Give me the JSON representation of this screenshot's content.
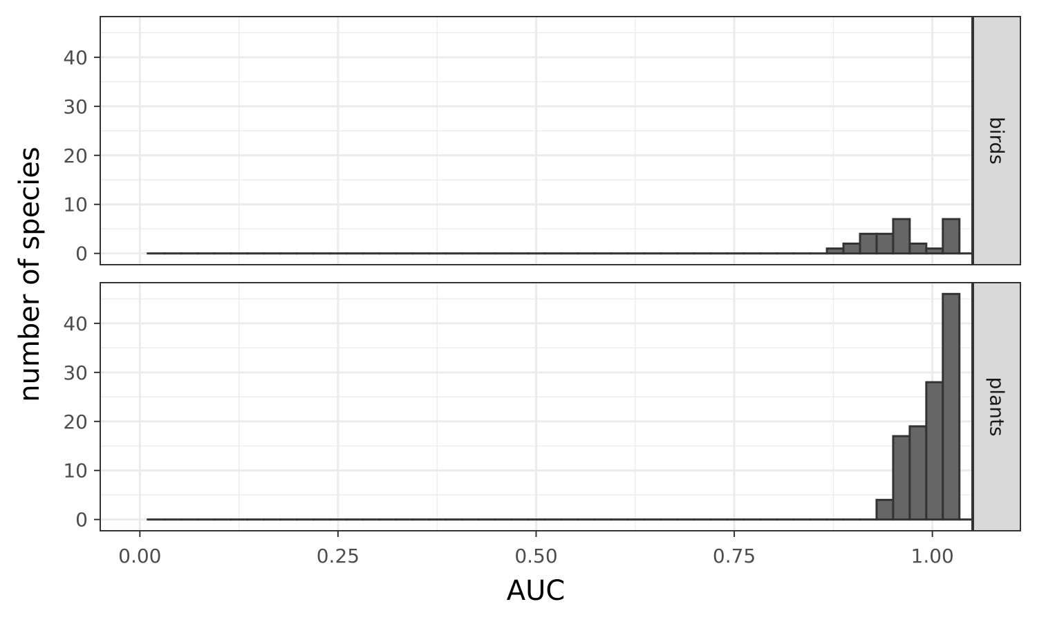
{
  "chart_data": {
    "type": "bar",
    "subtype": "faceted histogram",
    "xlabel": "AUC",
    "ylabel": "number of species",
    "xlim": [
      -0.05,
      1.05
    ],
    "ylim": [
      -2.3,
      48.3
    ],
    "x_ticks": [
      0.0,
      0.25,
      0.5,
      0.75,
      1.0
    ],
    "x_tick_labels": [
      "0.00",
      "0.25",
      "0.50",
      "0.75",
      "1.00"
    ],
    "y_ticks": [
      0,
      10,
      20,
      30,
      40
    ],
    "y_tick_labels": [
      "0",
      "10",
      "20",
      "30",
      "40"
    ],
    "bins": {
      "start": 0.01,
      "width": 0.0209,
      "count": 50
    },
    "bar_fill": "#666666",
    "bar_outline": "#333333",
    "grid": true,
    "strip_fill": "#d9d9d9",
    "facets": [
      {
        "name": "birds",
        "values": [
          0,
          0,
          0,
          0,
          0,
          0,
          0,
          0,
          0,
          0,
          0,
          0,
          0,
          0,
          0,
          0,
          0,
          0,
          0,
          0,
          0,
          0,
          0,
          0,
          0,
          0,
          0,
          0,
          0,
          0,
          0,
          0,
          0,
          0,
          0,
          0,
          0,
          0,
          0,
          0,
          0,
          1,
          2,
          4,
          4,
          7,
          2,
          1,
          7,
          0
        ]
      },
      {
        "name": "plants",
        "values": [
          0,
          0,
          0,
          0,
          0,
          0,
          0,
          0,
          0,
          0,
          0,
          0,
          0,
          0,
          0,
          0,
          0,
          0,
          0,
          0,
          0,
          0,
          0,
          0,
          0,
          0,
          0,
          0,
          0,
          0,
          0,
          0,
          0,
          0,
          0,
          0,
          0,
          0,
          0,
          0,
          0,
          0,
          0,
          0,
          4,
          17,
          19,
          28,
          46,
          0
        ]
      }
    ]
  }
}
